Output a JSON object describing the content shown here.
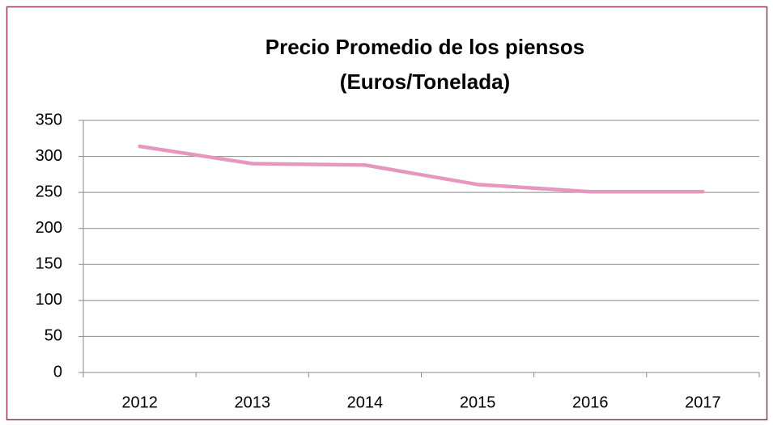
{
  "chart_data": {
    "type": "line",
    "title": [
      "Precio Promedio de los piensos",
      "(Euros/Tonelada)"
    ],
    "categories": [
      "2012",
      "2013",
      "2014",
      "2015",
      "2016",
      "2017"
    ],
    "series": [
      {
        "color": "#e597bd",
        "values": [
          314,
          290,
          288,
          261,
          251,
          251
        ]
      }
    ],
    "ylim": [
      0,
      350
    ],
    "yticks": [
      0,
      50,
      100,
      150,
      200,
      250,
      300,
      350
    ],
    "grid": true
  }
}
